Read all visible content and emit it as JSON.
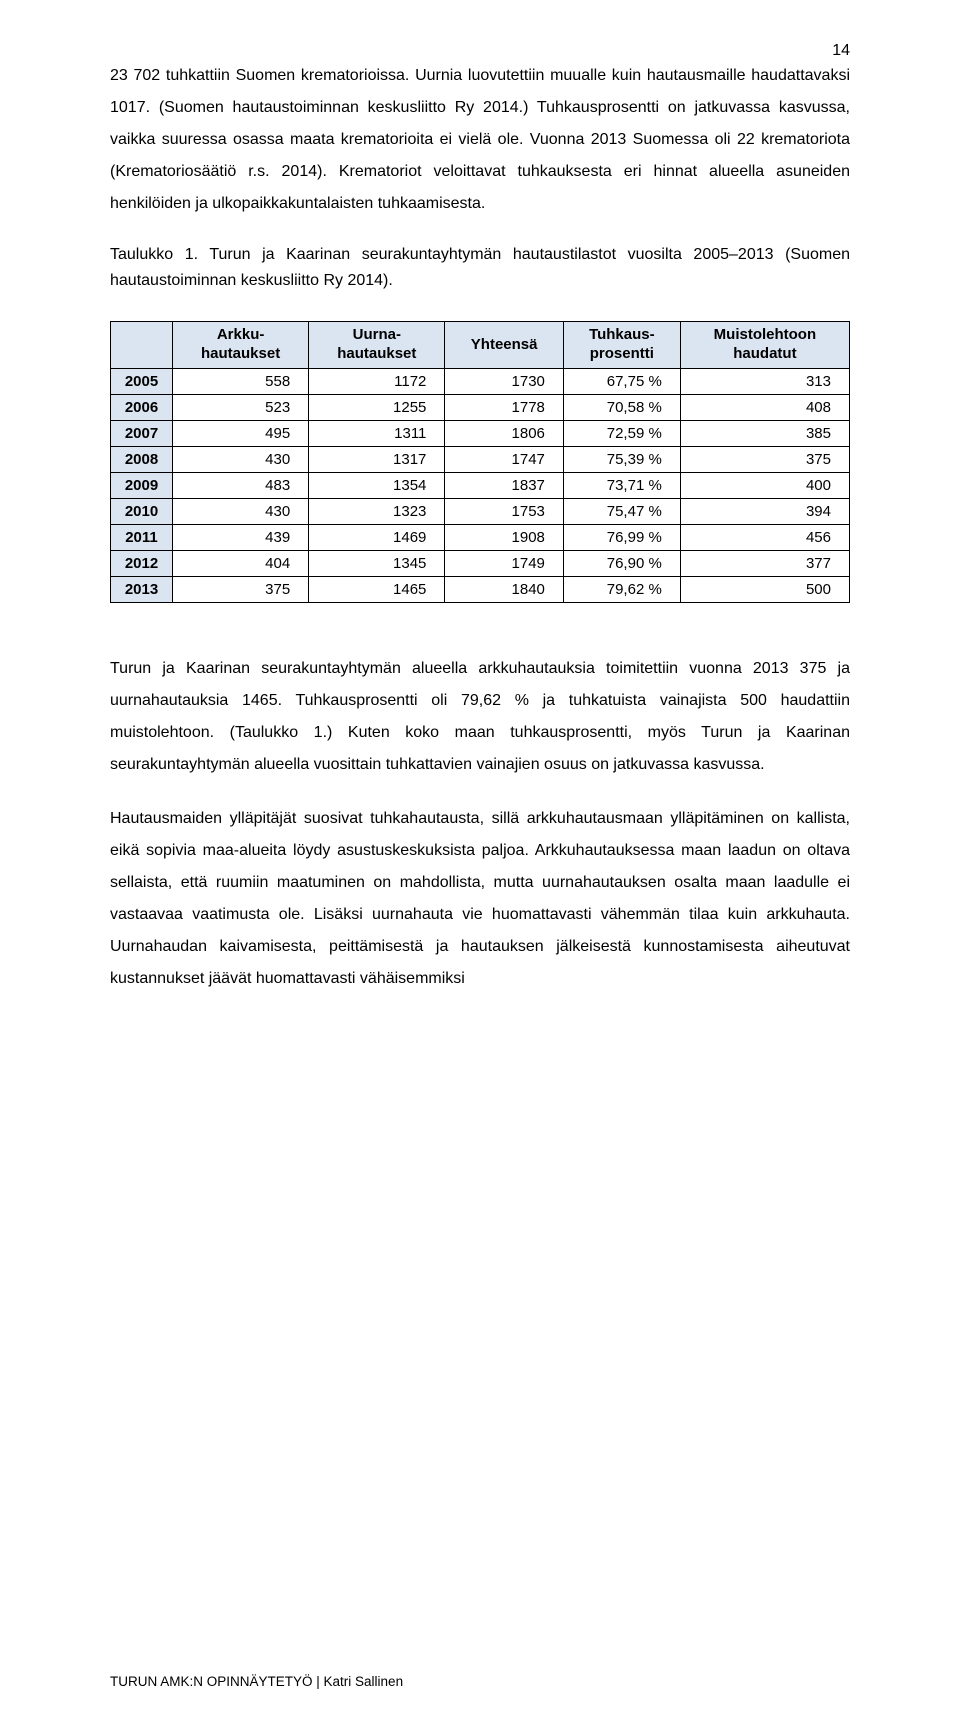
{
  "page_number": "14",
  "paragraphs": {
    "p1": "23 702 tuhkattiin Suomen krematorioissa. Uurnia luovutettiin muualle kuin hautausmaille haudattavaksi 1017. (Suomen hautaustoiminnan keskusliitto Ry 2014.) Tuhkausprosentti on jatkuvassa kasvussa, vaikka suuressa osassa maata krematorioita ei vielä ole. Vuonna 2013 Suomessa oli 22 krematoriota (Krematoriosäätiö r.s. 2014). Krematoriot veloittavat tuhkauksesta eri hinnat alueella asuneiden henkilöiden ja ulkopaikkakuntalaisten tuhkaamisesta.",
    "caption": "Taulukko 1. Turun ja Kaarinan seurakuntayhtymän hautaustilastot vuosilta 2005–2013 (Suomen hautaustoiminnan keskusliitto Ry 2014).",
    "p2": "Turun ja Kaarinan seurakuntayhtymän alueella arkkuhautauksia toimitettiin vuonna 2013 375 ja uurnahautauksia 1465. Tuhkausprosentti oli 79,62 % ja tuhkatuista vainajista 500 haudattiin muistolehtoon. (Taulukko 1.) Kuten koko maan tuhkausprosentti, myös Turun ja Kaarinan seurakuntayhtymän alueella vuosittain tuhkattavien vainajien osuus on jatkuvassa kasvussa.",
    "p3": "Hautausmaiden ylläpitäjät suosivat tuhkahautausta, sillä arkkuhautausmaan ylläpitäminen on kallista, eikä sopivia maa-alueita löydy asustuskeskuksista paljoa. Arkkuhautauksessa maan laadun on oltava sellaista, että ruumiin maatuminen on mahdollista, mutta uurnahautauksen osalta maan laadulle ei vastaavaa vaatimusta ole. Lisäksi uurnahauta vie huomattavasti vähemmän tilaa kuin arkkuhauta. Uurnahaudan kaivamisesta, peittämisestä ja hautauksen jälkeisestä kunnostamisesta aiheutuvat kustannukset jäävät huomattavasti vähäisemmiksi"
  },
  "table": {
    "header_bg": "#dbe5f1",
    "border_color": "#000000",
    "columns": [
      "Arkku-\nhautaukset",
      "Uurna-\nhautaukset",
      "Yhteensä",
      "Tuhkaus-\nprosentti",
      "Muistolehtoon\nhaudatut"
    ],
    "rows": [
      {
        "year": "2005",
        "c1": "558",
        "c2": "1172",
        "c3": "1730",
        "c4": "67,75 %",
        "c5": "313"
      },
      {
        "year": "2006",
        "c1": "523",
        "c2": "1255",
        "c3": "1778",
        "c4": "70,58 %",
        "c5": "408"
      },
      {
        "year": "2007",
        "c1": "495",
        "c2": "1311",
        "c3": "1806",
        "c4": "72,59 %",
        "c5": "385"
      },
      {
        "year": "2008",
        "c1": "430",
        "c2": "1317",
        "c3": "1747",
        "c4": "75,39 %",
        "c5": "375"
      },
      {
        "year": "2009",
        "c1": "483",
        "c2": "1354",
        "c3": "1837",
        "c4": "73,71 %",
        "c5": "400"
      },
      {
        "year": "2010",
        "c1": "430",
        "c2": "1323",
        "c3": "1753",
        "c4": "75,47 %",
        "c5": "394"
      },
      {
        "year": "2011",
        "c1": "439",
        "c2": "1469",
        "c3": "1908",
        "c4": "76,99 %",
        "c5": "456"
      },
      {
        "year": "2012",
        "c1": "404",
        "c2": "1345",
        "c3": "1749",
        "c4": "76,90 %",
        "c5": "377"
      },
      {
        "year": "2013",
        "c1": "375",
        "c2": "1465",
        "c3": "1840",
        "c4": "79,62 %",
        "c5": "500"
      }
    ]
  },
  "footer": "TURUN AMK:N OPINNÄYTETYÖ | Katri Sallinen"
}
